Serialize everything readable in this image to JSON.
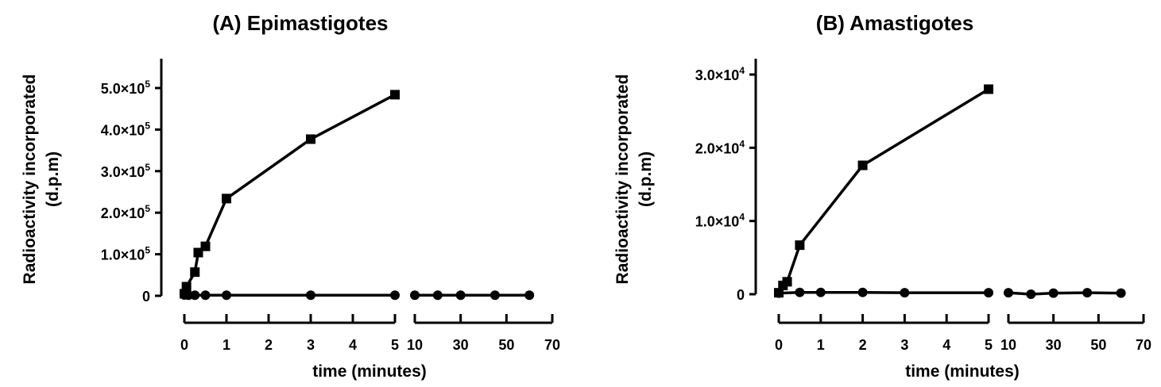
{
  "chart_data": [
    {
      "type": "line",
      "title": "(A) Epimastigotes",
      "xlabel": "time (minutes)",
      "ylabel": [
        "Radioactivity incorporated",
        "(d.p.m)"
      ],
      "ylim": [
        0,
        500000
      ],
      "y_ticks": [
        {
          "value": 0,
          "mantissa": "0",
          "exp": ""
        },
        {
          "value": 100000,
          "mantissa": "1.0×10",
          "exp": "5"
        },
        {
          "value": 200000,
          "mantissa": "2.0×10",
          "exp": "5"
        },
        {
          "value": 300000,
          "mantissa": "3.0×10",
          "exp": "5"
        },
        {
          "value": 400000,
          "mantissa": "4.0×10",
          "exp": "5"
        },
        {
          "value": 500000,
          "mantissa": "5.0×10",
          "exp": "5"
        }
      ],
      "x_segments": [
        {
          "range": [
            0,
            5
          ],
          "ticks": [
            "0",
            "1",
            "2",
            "3",
            "4",
            "5"
          ]
        },
        {
          "range": [
            10,
            70
          ],
          "ticks": [
            "10",
            "30",
            "50",
            "70"
          ]
        }
      ],
      "grid": false,
      "series": [
        {
          "marker": "square",
          "points": [
            [
              0,
              5000
            ],
            [
              0.05,
              22000
            ],
            [
              0.25,
              57000
            ],
            [
              0.33,
              104000
            ],
            [
              0.5,
              119000
            ],
            [
              1,
              234000
            ],
            [
              3,
              377000
            ],
            [
              5,
              484000
            ]
          ]
        },
        {
          "marker": "circle",
          "points": [
            [
              0,
              2000
            ],
            [
              0.1,
              1500
            ],
            [
              0.25,
              1500
            ],
            [
              0.5,
              1500
            ],
            [
              1,
              1500
            ],
            [
              3,
              1500
            ],
            [
              5,
              1500
            ],
            [
              10,
              1500
            ],
            [
              20,
              1500
            ],
            [
              30,
              1500
            ],
            [
              45,
              1500
            ],
            [
              60,
              1500
            ]
          ]
        }
      ]
    },
    {
      "type": "line",
      "title": "(B) Amastigotes",
      "xlabel": "time (minutes)",
      "ylabel": [
        "Radioactivity incorporated",
        "(d.p.m)"
      ],
      "ylim": [
        0,
        30000
      ],
      "y_ticks": [
        {
          "value": 0,
          "mantissa": "0",
          "exp": ""
        },
        {
          "value": 10000,
          "mantissa": "1.0×10",
          "exp": "4"
        },
        {
          "value": 20000,
          "mantissa": "2.0×10",
          "exp": "4"
        },
        {
          "value": 30000,
          "mantissa": "3.0×10",
          "exp": "4"
        }
      ],
      "x_segments": [
        {
          "range": [
            0,
            5
          ],
          "ticks": [
            "0",
            "1",
            "2",
            "3",
            "4",
            "5"
          ]
        },
        {
          "range": [
            10,
            70
          ],
          "ticks": [
            "10",
            "30",
            "50",
            "70"
          ]
        }
      ],
      "grid": false,
      "series": [
        {
          "marker": "square",
          "points": [
            [
              0,
              200
            ],
            [
              0.1,
              1200
            ],
            [
              0.2,
              1700
            ],
            [
              0.5,
              6700
            ],
            [
              2,
              17600
            ],
            [
              5,
              28000
            ]
          ]
        },
        {
          "marker": "circle",
          "points": [
            [
              0,
              150
            ],
            [
              0.5,
              250
            ],
            [
              1,
              250
            ],
            [
              2,
              250
            ],
            [
              3,
              200
            ],
            [
              5,
              200
            ],
            [
              10,
              200
            ],
            [
              20,
              0
            ],
            [
              30,
              150
            ],
            [
              45,
              200
            ],
            [
              60,
              150
            ]
          ]
        }
      ]
    }
  ]
}
